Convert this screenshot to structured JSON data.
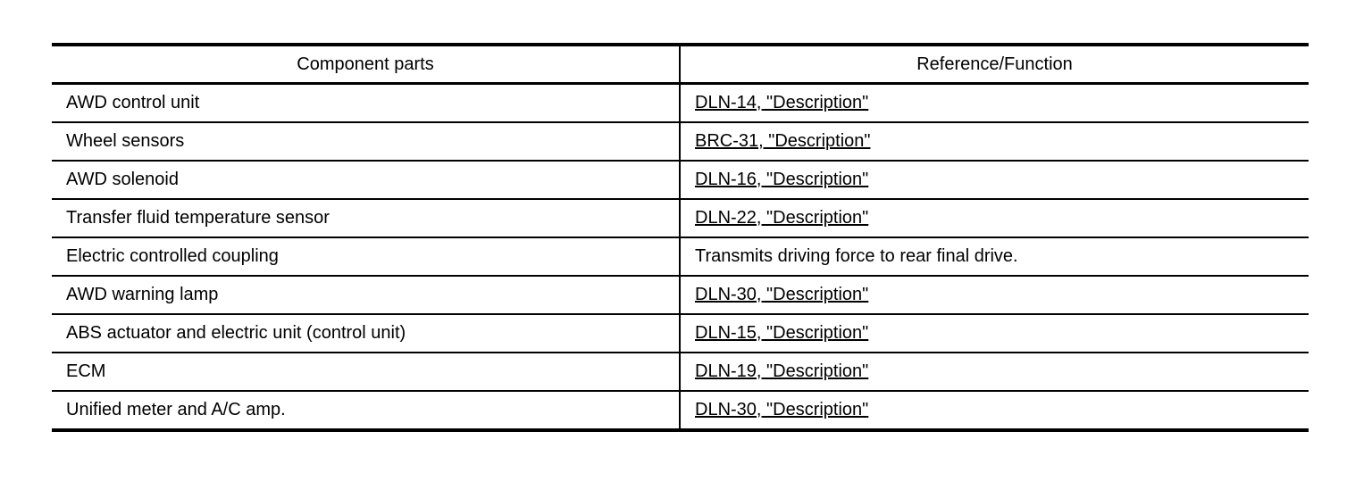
{
  "table": {
    "headers": [
      "Component parts",
      "Reference/Function"
    ],
    "rows": [
      {
        "part": "AWD control unit",
        "ref": "DLN-14, \"Description\"",
        "link": true
      },
      {
        "part": "Wheel sensors",
        "ref": "BRC-31, \"Description\"",
        "link": true
      },
      {
        "part": "AWD solenoid",
        "ref": "DLN-16, \"Description\"",
        "link": true
      },
      {
        "part": "Transfer fluid temperature sensor",
        "ref": "DLN-22, \"Description\"",
        "link": true
      },
      {
        "part": "Electric controlled coupling",
        "ref": "Transmits driving force to rear final drive.",
        "link": false
      },
      {
        "part": "AWD warning lamp",
        "ref": "DLN-30, \"Description\"",
        "link": true
      },
      {
        "part": "ABS actuator and electric unit (control unit)",
        "ref": "DLN-15, \"Description\"",
        "link": true
      },
      {
        "part": "ECM",
        "ref": "DLN-19, \"Description\"",
        "link": true
      },
      {
        "part": "Unified meter and A/C amp.",
        "ref": "DLN-30, \"Description\"",
        "link": true
      }
    ]
  }
}
